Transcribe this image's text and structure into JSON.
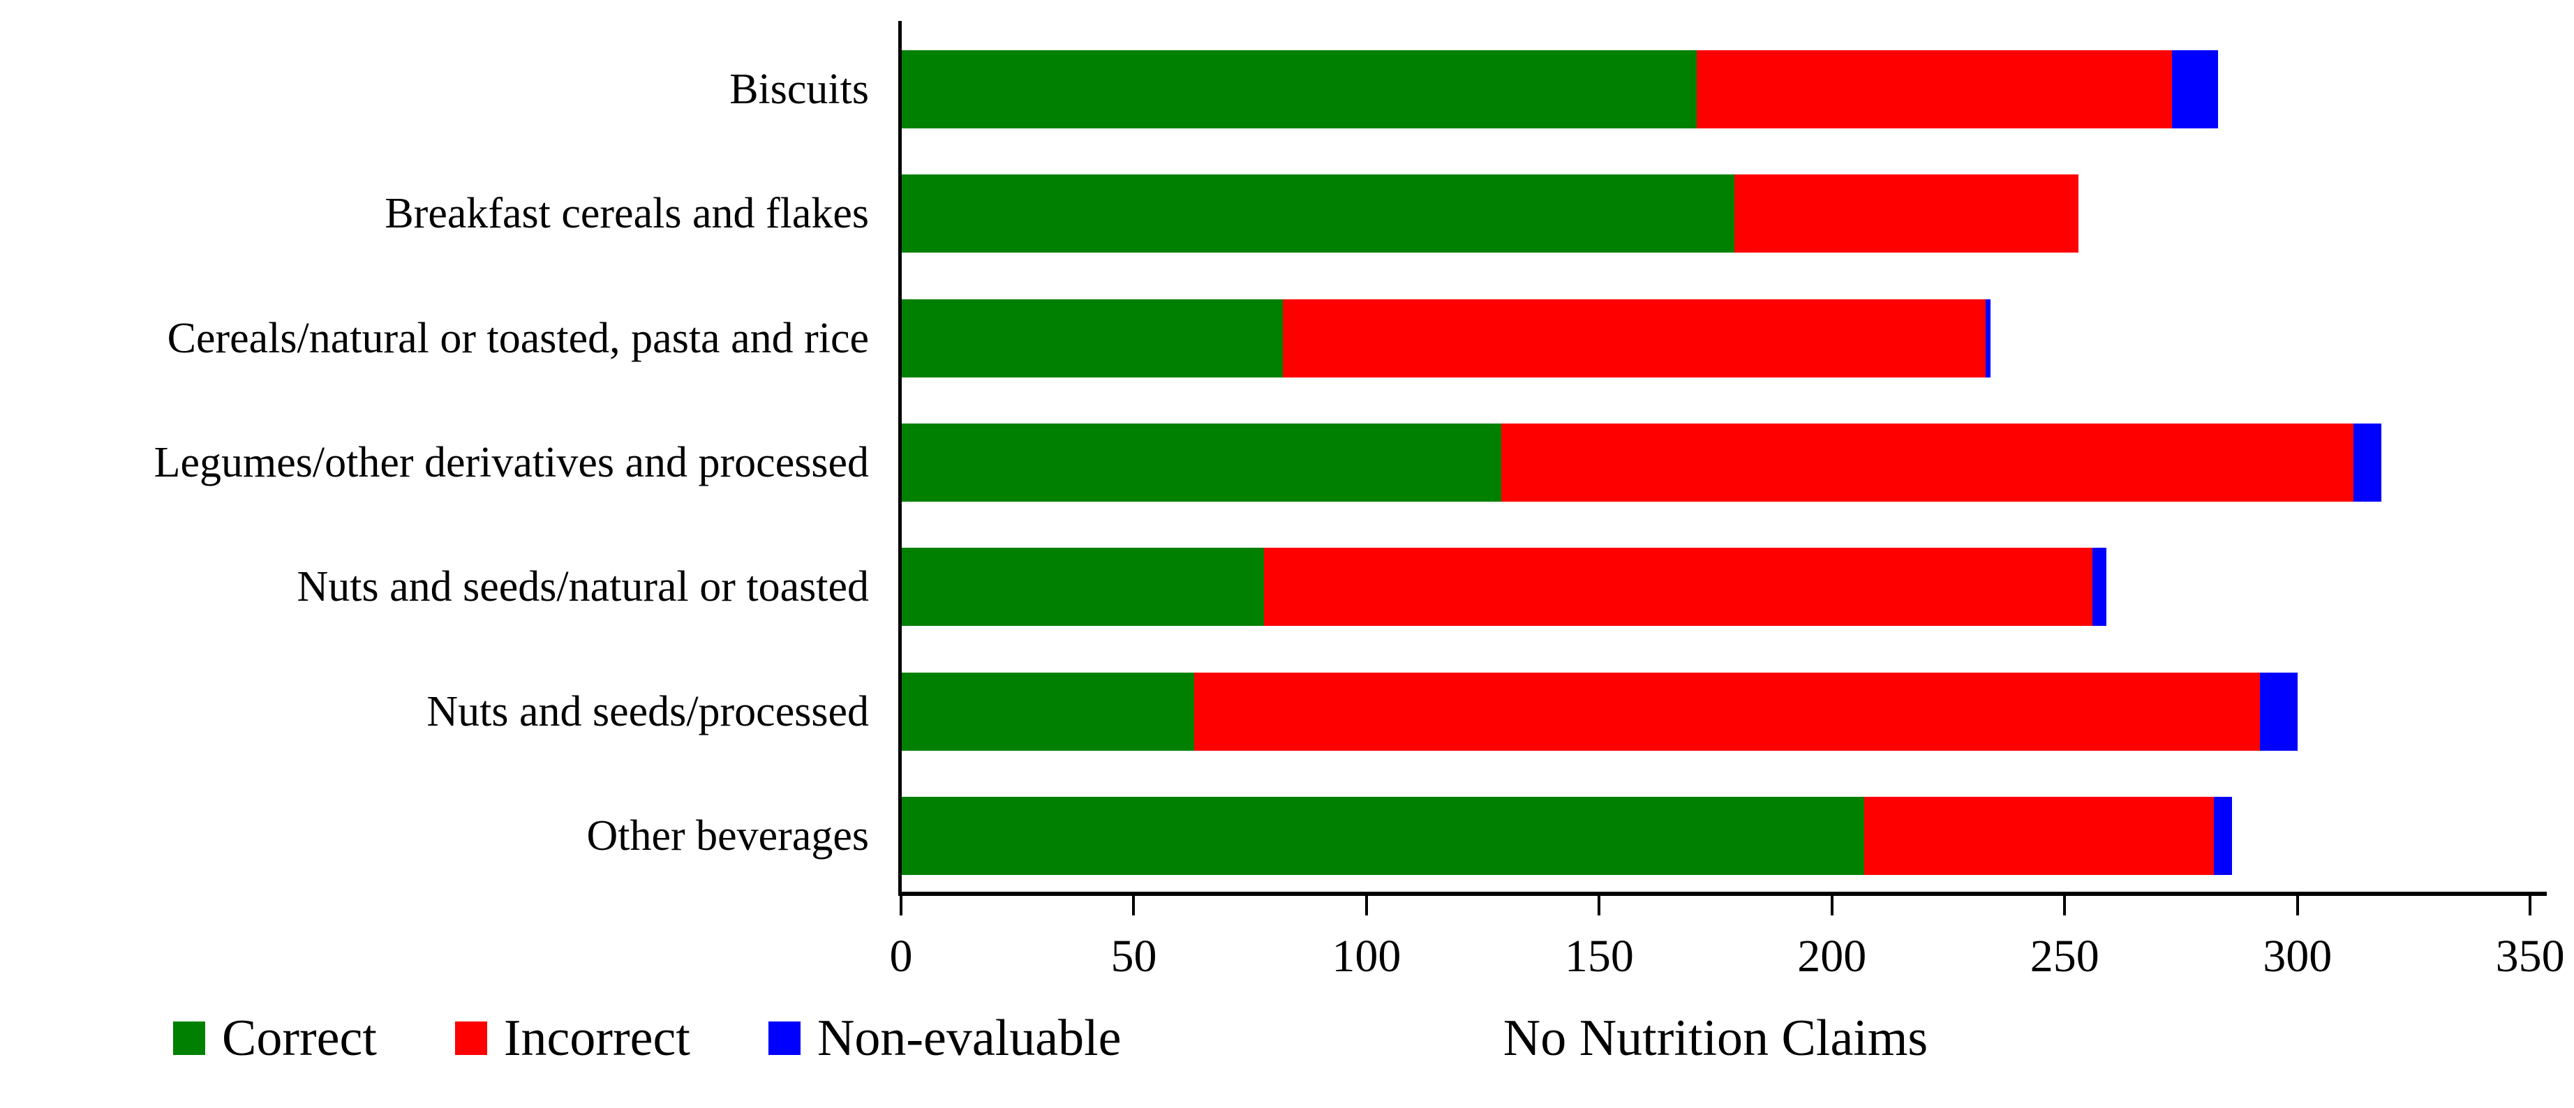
{
  "chart_data": {
    "type": "bar",
    "orientation": "horizontal",
    "stacked": true,
    "title": "",
    "xlabel": "No Nutrition Claims",
    "ylabel": "",
    "xlim": [
      0,
      350
    ],
    "xticks": [
      0,
      50,
      100,
      150,
      200,
      250,
      300,
      350
    ],
    "grid": false,
    "legend_position": "bottom-left",
    "axis_color": "#000000",
    "background": "#ffffff",
    "categories": [
      "Biscuits",
      "Breakfast cereals and flakes",
      "Cereals/natural or toasted, pasta and rice",
      "Legumes/other derivatives and processed",
      "Nuts and seeds/natural or toasted",
      "Nuts and seeds/processed",
      "Other beverages"
    ],
    "series": [
      {
        "name": "Correct",
        "color": "#008000",
        "values": [
          171,
          179,
          82,
          129,
          78,
          63,
          207
        ]
      },
      {
        "name": "Incorrect",
        "color": "#ff0000",
        "values": [
          102,
          74,
          151,
          183,
          178,
          229,
          75
        ]
      },
      {
        "name": "Non-evaluable",
        "color": "#0000ff",
        "values": [
          10,
          0,
          1,
          6,
          3,
          8,
          4
        ]
      }
    ]
  }
}
